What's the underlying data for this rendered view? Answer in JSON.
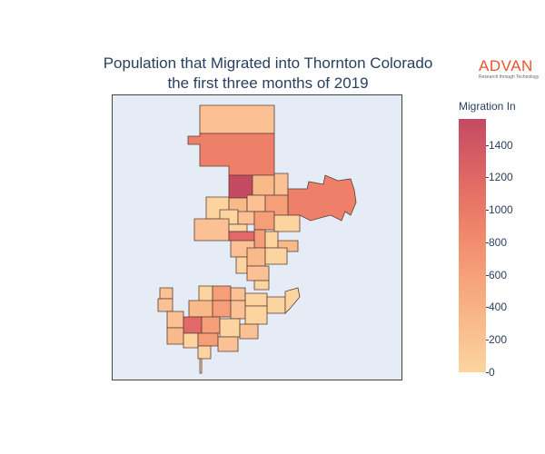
{
  "title": {
    "line1": "Population that Migrated into Thornton Colorado",
    "line2": "the first three months of 2019"
  },
  "logo": {
    "word": "ADVAN",
    "tagline": "Research through Technology"
  },
  "colorbar": {
    "title": "Migration In",
    "range": [
      0,
      1560
    ],
    "ticks": [
      0,
      200,
      400,
      600,
      800,
      1000,
      1200,
      1400
    ],
    "colorscale": [
      "#fcd4a0",
      "#f9ba8a",
      "#f59e77",
      "#ee8069",
      "#dc6364",
      "#c44a62"
    ]
  },
  "colors": {
    "map_background": "#e5ecf6",
    "region_stroke": "#5a3e36",
    "text": "#2a3f5f"
  },
  "chart_data": {
    "type": "choropleth",
    "title": "Population that Migrated into Thornton Colorado the first three months of 2019",
    "colorbar_title": "Migration In",
    "value_range": [
      0,
      1560
    ]
  }
}
